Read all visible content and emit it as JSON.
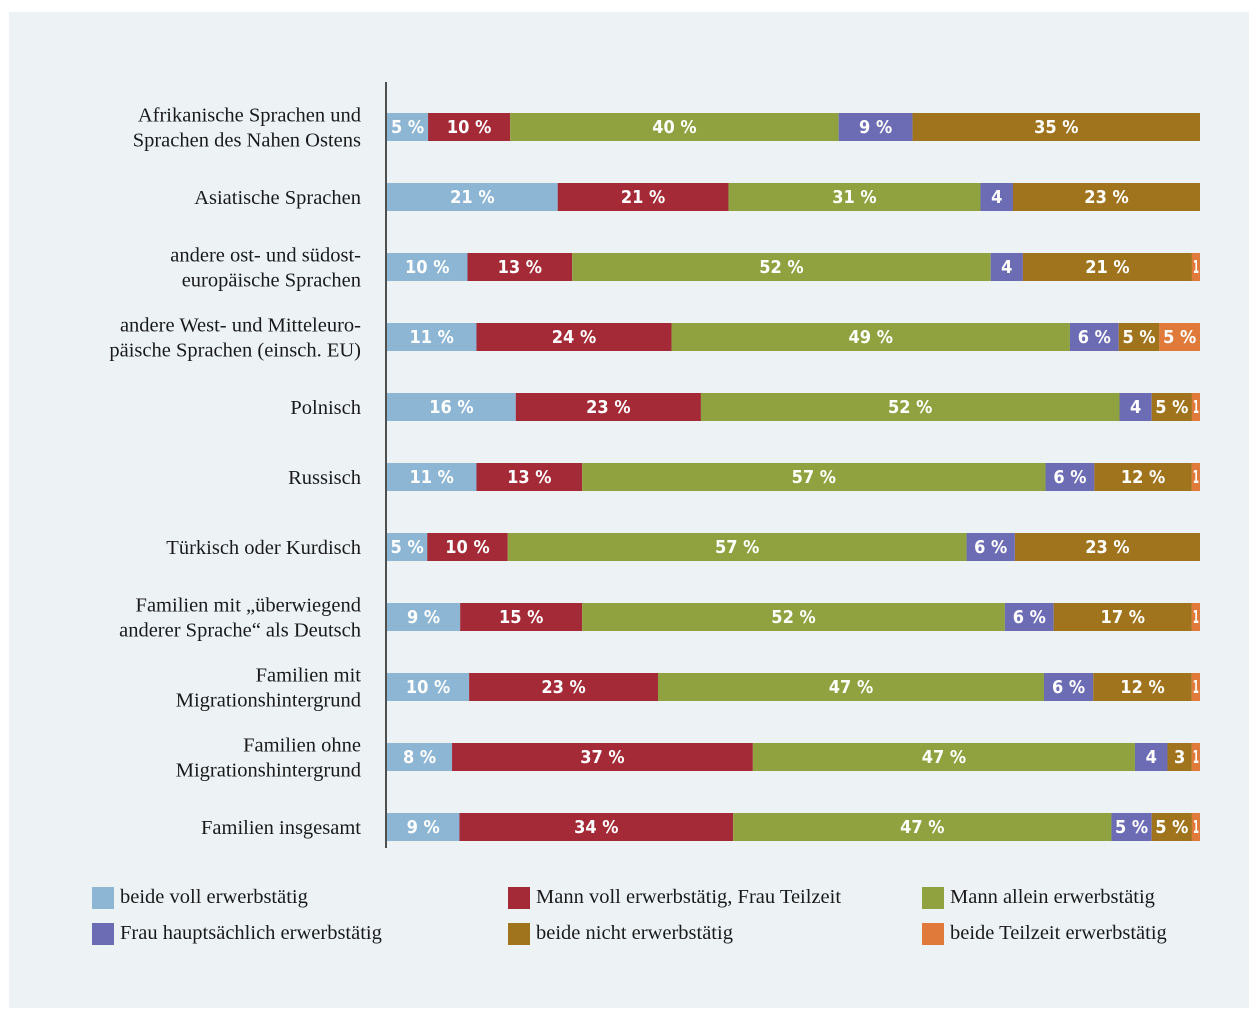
{
  "chart_data": {
    "type": "bar",
    "orientation": "horizontal",
    "stacked": true,
    "percent_scale": true,
    "categories": [
      "Afrikanische Sprachen und\nSprachen des Nahen Ostens",
      "Asiatische Sprachen",
      "andere ost- und südost-\neuropäische Sprachen",
      "andere West- und Mitteleuro-\npäische Sprachen (einsch. EU)",
      "Polnisch",
      "Russisch",
      "Türkisch oder Kurdisch",
      "Familien mit „überwiegend\nanderer Sprache“ als Deutsch",
      "Familien mit\nMigrationshintergrund",
      "Familien ohne\nMigrationshintergrund",
      "Familien insgesamt"
    ],
    "series": [
      {
        "name": "beide voll erwerbstätig",
        "color": "#8db5d4",
        "values": [
          5,
          21,
          10,
          11,
          16,
          11,
          5,
          9,
          10,
          8,
          9
        ],
        "labels": [
          "5 %",
          "21 %",
          "10 %",
          "11 %",
          "16 %",
          "11 %",
          "5 %",
          "9 %",
          "10 %",
          "8 %",
          "9 %"
        ]
      },
      {
        "name": "Mann voll erwerbstätig, Frau Teilzeit",
        "color": "#a32a36",
        "values": [
          10,
          21,
          13,
          24,
          23,
          13,
          10,
          15,
          23,
          37,
          34
        ],
        "labels": [
          "10 %",
          "21 %",
          "13 %",
          "24 %",
          "23 %",
          "13 %",
          "10 %",
          "15 %",
          "23 %",
          "37 %",
          "34 %"
        ]
      },
      {
        "name": "Mann allein erwerbstätig",
        "color": "#8fa23f",
        "values": [
          40,
          31,
          52,
          49,
          52,
          57,
          57,
          52,
          47,
          47,
          47
        ],
        "labels": [
          "40 %",
          "31 %",
          "52 %",
          "49 %",
          "52 %",
          "57 %",
          "57 %",
          "52 %",
          "47 %",
          "47 %",
          "47 %"
        ]
      },
      {
        "name": "Frau hauptsächlich erwerbstätig",
        "color": "#6c6cb5",
        "values": [
          9,
          4,
          4,
          6,
          4,
          6,
          6,
          6,
          6,
          4,
          5
        ],
        "labels": [
          "9 %",
          "4",
          "4",
          "6 %",
          "4",
          "6 %",
          "6 %",
          "6 %",
          "6 %",
          "4",
          "5 %"
        ]
      },
      {
        "name": "beide nicht erwerbstätig",
        "color": "#a0741d",
        "values": [
          35,
          23,
          21,
          5,
          5,
          12,
          23,
          17,
          12,
          3,
          5
        ],
        "labels": [
          "35 %",
          "23 %",
          "21 %",
          "5 %",
          "5 %",
          "12 %",
          "23 %",
          "17 %",
          "12 %",
          "3",
          "5 %"
        ]
      },
      {
        "name": "beide Teilzeit erwerbstätig",
        "color": "#e07a3a",
        "values": [
          0,
          0,
          1,
          5,
          1,
          1,
          0,
          1,
          1,
          1,
          1
        ],
        "labels": [
          "",
          "",
          "1",
          "5 %",
          "1",
          "1",
          "",
          "1",
          "1",
          "1",
          "1"
        ]
      }
    ],
    "legend": {
      "position": "bottom",
      "columns": 3
    },
    "grid": false
  }
}
